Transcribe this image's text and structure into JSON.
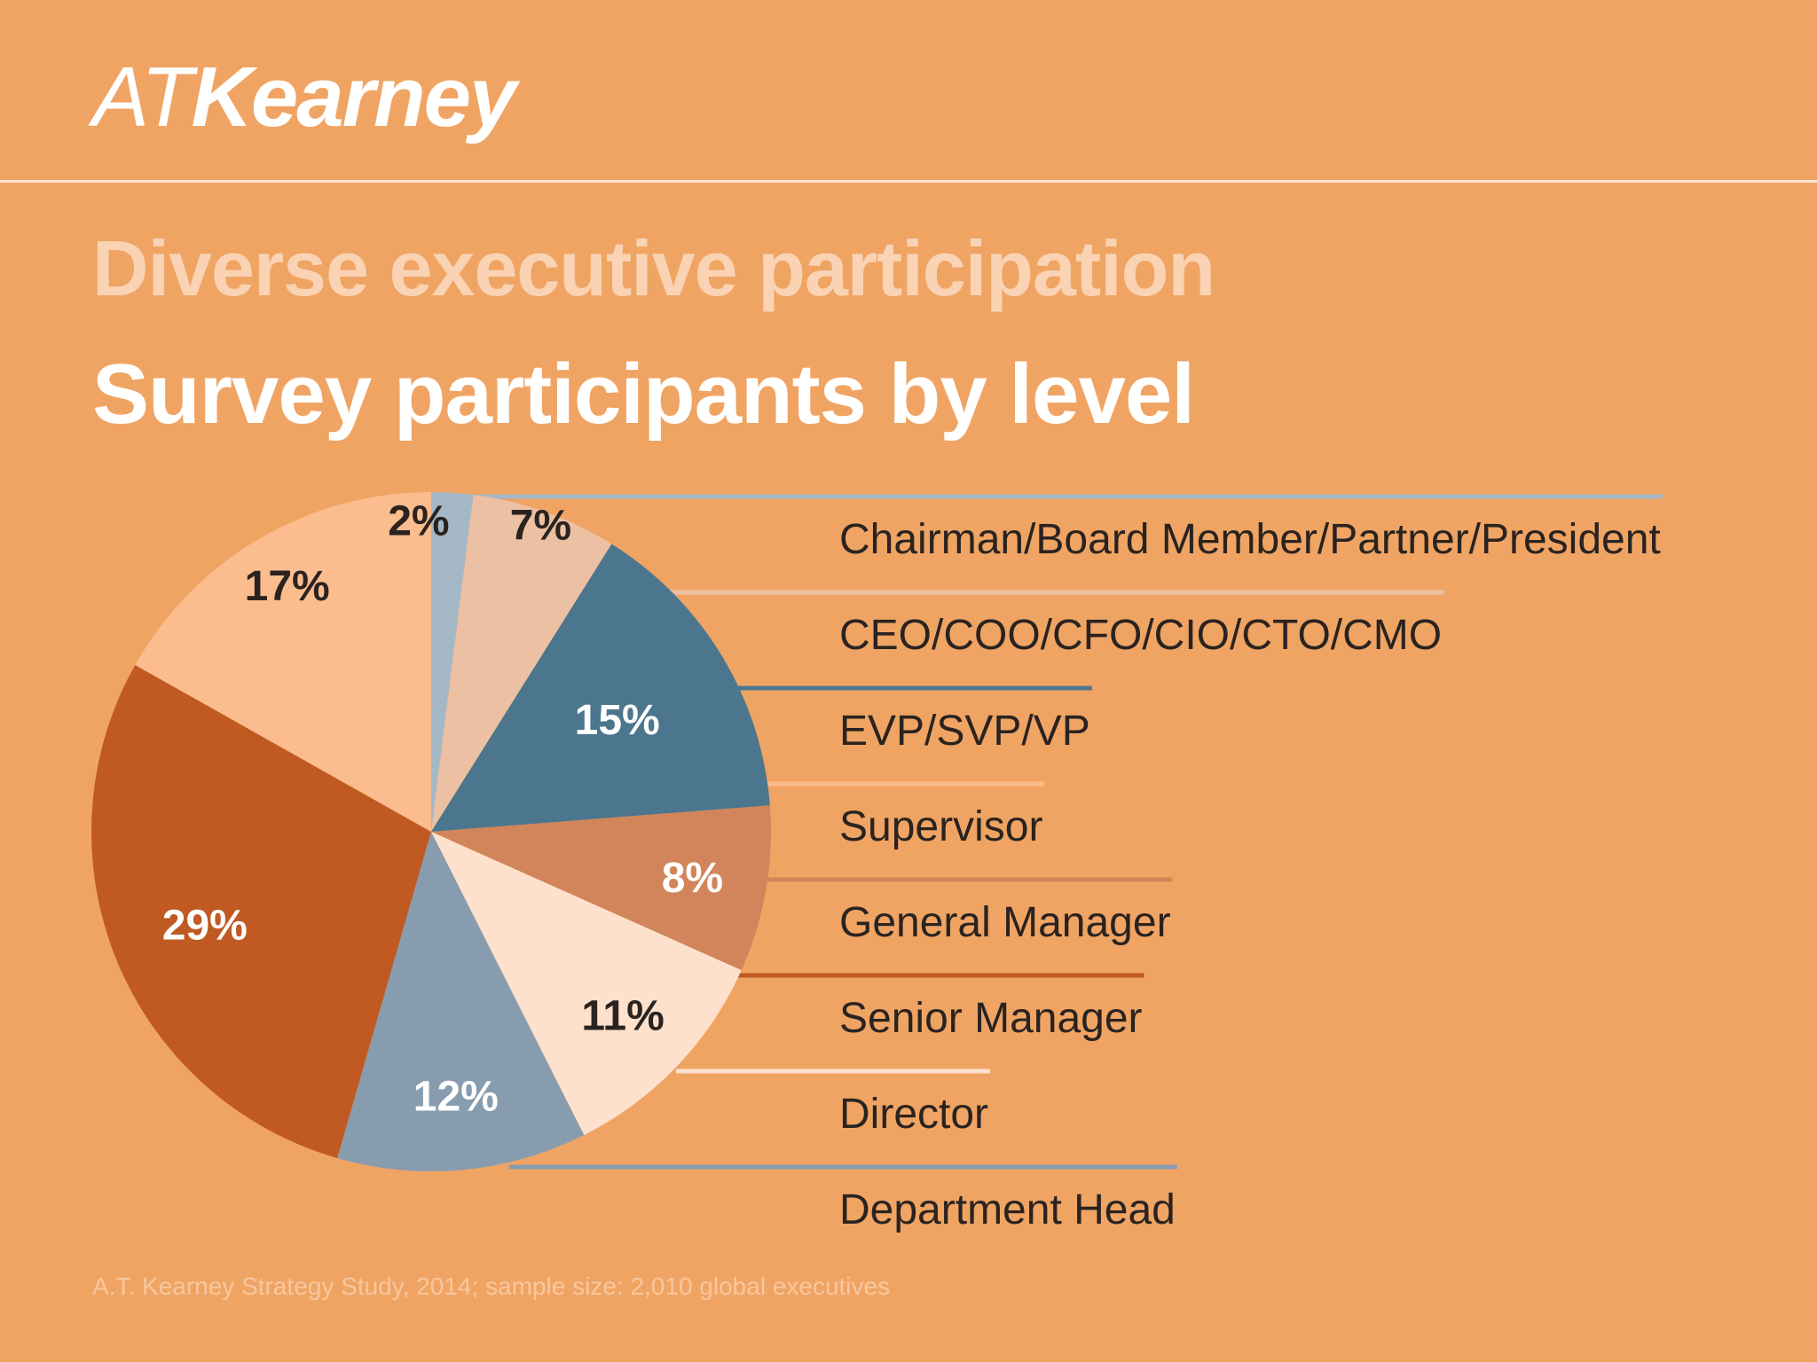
{
  "brand": {
    "logo_prefix": "AT",
    "logo_name": "Kearney"
  },
  "header": {
    "subtitle": "Diverse executive participation",
    "title": "Survey participants by level"
  },
  "chart_data": {
    "type": "pie",
    "title": "Survey participants by level",
    "slices": [
      {
        "label": "Chairman/Board Member/Partner/President",
        "value": 2,
        "display": "2%",
        "color": "#a5b8c8",
        "label_color": "#2a2320"
      },
      {
        "label": "CEO/COO/CFO/CIO/CTO/CMO",
        "value": 7,
        "display": "7%",
        "color": "#ecc0a2",
        "label_color": "#2a2320"
      },
      {
        "label": "EVP/SVP/VP",
        "value": 15,
        "display": "15%",
        "color": "#4b768e",
        "label_color": "#ffffff"
      },
      {
        "label": "General Manager",
        "value": 8,
        "display": "8%",
        "color": "#d2855a",
        "label_color": "#ffffff"
      },
      {
        "label": "Director",
        "value": 11,
        "display": "11%",
        "color": "#fde1cc",
        "label_color": "#2a2320"
      },
      {
        "label": "Department Head",
        "value": 12,
        "display": "12%",
        "color": "#879daf",
        "label_color": "#ffffff"
      },
      {
        "label": "Senior Manager",
        "value": 29,
        "display": "29%",
        "color": "#c05a22",
        "label_color": "#ffffff"
      },
      {
        "label": "Supervisor",
        "value": 17,
        "display": "17%",
        "color": "#fbbd8e",
        "label_color": "#2a2320"
      }
    ],
    "legend_order": [
      "Chairman/Board Member/Partner/President",
      "CEO/COO/CFO/CIO/CTO/CMO",
      "EVP/SVP/VP",
      "Supervisor",
      "General Manager",
      "Senior Manager",
      "Director",
      "Department Head"
    ],
    "legend_placement": "right"
  },
  "footer": {
    "source": "A.T. Kearney Strategy Study, 2014; sample size: 2,010 global executives"
  }
}
